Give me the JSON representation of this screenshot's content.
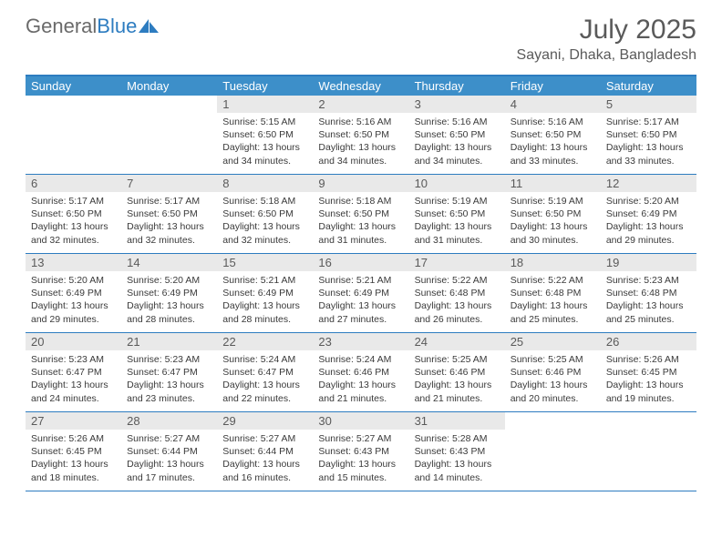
{
  "logo": {
    "text1": "General",
    "text2": "Blue"
  },
  "title": "July 2025",
  "location": "Sayani, Dhaka, Bangladesh",
  "colors": {
    "header_bg": "#3d8fc9",
    "border": "#2d7cc0",
    "daynum_bg": "#e9e9e9",
    "text_gray": "#5a5a5a"
  },
  "day_headers": [
    "Sunday",
    "Monday",
    "Tuesday",
    "Wednesday",
    "Thursday",
    "Friday",
    "Saturday"
  ],
  "weeks": [
    [
      {
        "empty": true
      },
      {
        "empty": true
      },
      {
        "n": "1",
        "sr": "Sunrise: 5:15 AM",
        "ss": "Sunset: 6:50 PM",
        "d1": "Daylight: 13 hours",
        "d2": "and 34 minutes."
      },
      {
        "n": "2",
        "sr": "Sunrise: 5:16 AM",
        "ss": "Sunset: 6:50 PM",
        "d1": "Daylight: 13 hours",
        "d2": "and 34 minutes."
      },
      {
        "n": "3",
        "sr": "Sunrise: 5:16 AM",
        "ss": "Sunset: 6:50 PM",
        "d1": "Daylight: 13 hours",
        "d2": "and 34 minutes."
      },
      {
        "n": "4",
        "sr": "Sunrise: 5:16 AM",
        "ss": "Sunset: 6:50 PM",
        "d1": "Daylight: 13 hours",
        "d2": "and 33 minutes."
      },
      {
        "n": "5",
        "sr": "Sunrise: 5:17 AM",
        "ss": "Sunset: 6:50 PM",
        "d1": "Daylight: 13 hours",
        "d2": "and 33 minutes."
      }
    ],
    [
      {
        "n": "6",
        "sr": "Sunrise: 5:17 AM",
        "ss": "Sunset: 6:50 PM",
        "d1": "Daylight: 13 hours",
        "d2": "and 32 minutes."
      },
      {
        "n": "7",
        "sr": "Sunrise: 5:17 AM",
        "ss": "Sunset: 6:50 PM",
        "d1": "Daylight: 13 hours",
        "d2": "and 32 minutes."
      },
      {
        "n": "8",
        "sr": "Sunrise: 5:18 AM",
        "ss": "Sunset: 6:50 PM",
        "d1": "Daylight: 13 hours",
        "d2": "and 32 minutes."
      },
      {
        "n": "9",
        "sr": "Sunrise: 5:18 AM",
        "ss": "Sunset: 6:50 PM",
        "d1": "Daylight: 13 hours",
        "d2": "and 31 minutes."
      },
      {
        "n": "10",
        "sr": "Sunrise: 5:19 AM",
        "ss": "Sunset: 6:50 PM",
        "d1": "Daylight: 13 hours",
        "d2": "and 31 minutes."
      },
      {
        "n": "11",
        "sr": "Sunrise: 5:19 AM",
        "ss": "Sunset: 6:50 PM",
        "d1": "Daylight: 13 hours",
        "d2": "and 30 minutes."
      },
      {
        "n": "12",
        "sr": "Sunrise: 5:20 AM",
        "ss": "Sunset: 6:49 PM",
        "d1": "Daylight: 13 hours",
        "d2": "and 29 minutes."
      }
    ],
    [
      {
        "n": "13",
        "sr": "Sunrise: 5:20 AM",
        "ss": "Sunset: 6:49 PM",
        "d1": "Daylight: 13 hours",
        "d2": "and 29 minutes."
      },
      {
        "n": "14",
        "sr": "Sunrise: 5:20 AM",
        "ss": "Sunset: 6:49 PM",
        "d1": "Daylight: 13 hours",
        "d2": "and 28 minutes."
      },
      {
        "n": "15",
        "sr": "Sunrise: 5:21 AM",
        "ss": "Sunset: 6:49 PM",
        "d1": "Daylight: 13 hours",
        "d2": "and 28 minutes."
      },
      {
        "n": "16",
        "sr": "Sunrise: 5:21 AM",
        "ss": "Sunset: 6:49 PM",
        "d1": "Daylight: 13 hours",
        "d2": "and 27 minutes."
      },
      {
        "n": "17",
        "sr": "Sunrise: 5:22 AM",
        "ss": "Sunset: 6:48 PM",
        "d1": "Daylight: 13 hours",
        "d2": "and 26 minutes."
      },
      {
        "n": "18",
        "sr": "Sunrise: 5:22 AM",
        "ss": "Sunset: 6:48 PM",
        "d1": "Daylight: 13 hours",
        "d2": "and 25 minutes."
      },
      {
        "n": "19",
        "sr": "Sunrise: 5:23 AM",
        "ss": "Sunset: 6:48 PM",
        "d1": "Daylight: 13 hours",
        "d2": "and 25 minutes."
      }
    ],
    [
      {
        "n": "20",
        "sr": "Sunrise: 5:23 AM",
        "ss": "Sunset: 6:47 PM",
        "d1": "Daylight: 13 hours",
        "d2": "and 24 minutes."
      },
      {
        "n": "21",
        "sr": "Sunrise: 5:23 AM",
        "ss": "Sunset: 6:47 PM",
        "d1": "Daylight: 13 hours",
        "d2": "and 23 minutes."
      },
      {
        "n": "22",
        "sr": "Sunrise: 5:24 AM",
        "ss": "Sunset: 6:47 PM",
        "d1": "Daylight: 13 hours",
        "d2": "and 22 minutes."
      },
      {
        "n": "23",
        "sr": "Sunrise: 5:24 AM",
        "ss": "Sunset: 6:46 PM",
        "d1": "Daylight: 13 hours",
        "d2": "and 21 minutes."
      },
      {
        "n": "24",
        "sr": "Sunrise: 5:25 AM",
        "ss": "Sunset: 6:46 PM",
        "d1": "Daylight: 13 hours",
        "d2": "and 21 minutes."
      },
      {
        "n": "25",
        "sr": "Sunrise: 5:25 AM",
        "ss": "Sunset: 6:46 PM",
        "d1": "Daylight: 13 hours",
        "d2": "and 20 minutes."
      },
      {
        "n": "26",
        "sr": "Sunrise: 5:26 AM",
        "ss": "Sunset: 6:45 PM",
        "d1": "Daylight: 13 hours",
        "d2": "and 19 minutes."
      }
    ],
    [
      {
        "n": "27",
        "sr": "Sunrise: 5:26 AM",
        "ss": "Sunset: 6:45 PM",
        "d1": "Daylight: 13 hours",
        "d2": "and 18 minutes."
      },
      {
        "n": "28",
        "sr": "Sunrise: 5:27 AM",
        "ss": "Sunset: 6:44 PM",
        "d1": "Daylight: 13 hours",
        "d2": "and 17 minutes."
      },
      {
        "n": "29",
        "sr": "Sunrise: 5:27 AM",
        "ss": "Sunset: 6:44 PM",
        "d1": "Daylight: 13 hours",
        "d2": "and 16 minutes."
      },
      {
        "n": "30",
        "sr": "Sunrise: 5:27 AM",
        "ss": "Sunset: 6:43 PM",
        "d1": "Daylight: 13 hours",
        "d2": "and 15 minutes."
      },
      {
        "n": "31",
        "sr": "Sunrise: 5:28 AM",
        "ss": "Sunset: 6:43 PM",
        "d1": "Daylight: 13 hours",
        "d2": "and 14 minutes."
      },
      {
        "empty": true
      },
      {
        "empty": true
      }
    ]
  ]
}
